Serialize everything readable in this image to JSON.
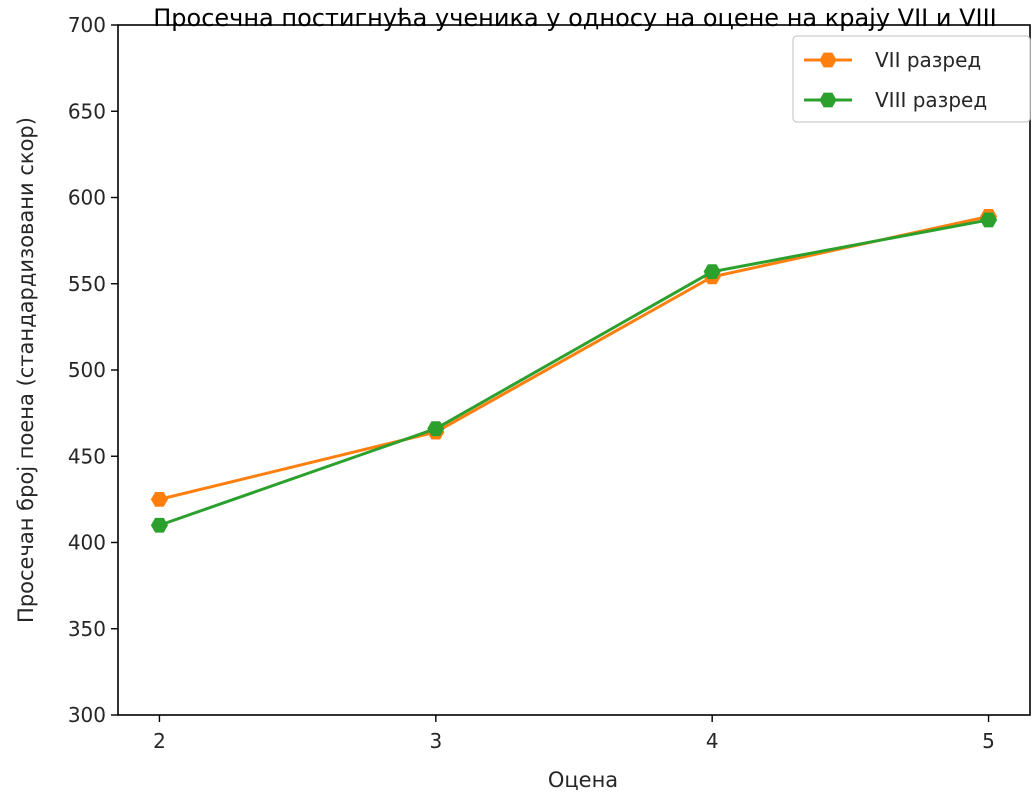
{
  "chart_data": {
    "type": "line",
    "title": "Просечна постигнућа ученика у односу на оцене на крају VII и VIII",
    "xlabel": "Оцена",
    "ylabel": "Просечан број поена (стандардизовани скор)",
    "x": [
      2,
      3,
      4,
      5
    ],
    "x_tick_labels": [
      "2",
      "3",
      "4",
      "5"
    ],
    "y_tick_labels": [
      "300",
      "350",
      "400",
      "450",
      "500",
      "550",
      "600",
      "650",
      "700"
    ],
    "ylim": [
      300,
      700
    ],
    "y_ticks": [
      300,
      350,
      400,
      450,
      500,
      550,
      600,
      650,
      700
    ],
    "grid": false,
    "legend_position": "top-right",
    "marker": "hexagon",
    "series": [
      {
        "name": "VII разред",
        "color": "#ff7f0e",
        "values": [
          425,
          464,
          554,
          589
        ]
      },
      {
        "name": "VIII разред",
        "color": "#2ca02c",
        "values": [
          410,
          466,
          557,
          587
        ]
      }
    ]
  }
}
